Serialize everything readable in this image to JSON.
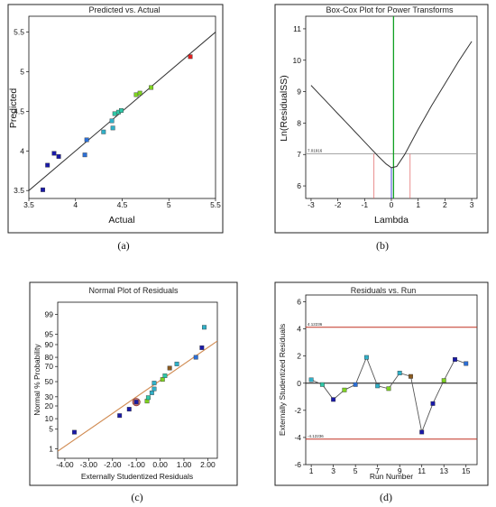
{
  "chart_data": [
    {
      "type": "scatter",
      "caption": "(a)",
      "title": "Predicted vs. Actual",
      "xlabel": "Actual",
      "ylabel": "Predicted",
      "xlim": [
        3.5,
        5.5
      ],
      "ylim": [
        3.4,
        5.7
      ],
      "xticks": [
        "3.5",
        "4",
        "4.5",
        "5",
        "5.5"
      ],
      "yticks": [
        "3.5",
        "4",
        "4.5",
        "5",
        "5.5"
      ],
      "x": [
        3.65,
        3.7,
        3.77,
        3.82,
        4.1,
        4.12,
        4.3,
        4.39,
        4.4,
        4.42,
        4.46,
        4.49,
        4.65,
        4.69,
        4.81,
        5.23
      ],
      "y": [
        3.51,
        3.82,
        3.97,
        3.93,
        3.95,
        4.14,
        4.24,
        4.38,
        4.29,
        4.47,
        4.49,
        4.51,
        4.71,
        4.73,
        4.8,
        5.19
      ],
      "point_colors": [
        "#1a1aa8",
        "#1a1aa8",
        "#1a1aa8",
        "#1a1aa8",
        "#2c6fd6",
        "#2c6fd6",
        "#30b0c8",
        "#30b0c8",
        "#30b0c8",
        "#30c8a8",
        "#30c8a8",
        "#30c8a8",
        "#7ed321",
        "#7ed321",
        "#7ed321",
        "#e02020"
      ],
      "reference_line": [
        [
          3.5,
          3.5
        ],
        [
          5.5,
          5.5
        ]
      ]
    },
    {
      "type": "line",
      "caption": "(b)",
      "title": "Box-Cox Plot for Power Transforms",
      "xlabel": "Lambda",
      "ylabel": "Ln(ResidualSS)",
      "xlim": [
        -3.2,
        3.2
      ],
      "ylim": [
        5.6,
        11.4
      ],
      "xticks": [
        "-3",
        "-2",
        "-1",
        "0",
        "1",
        "2",
        "3"
      ],
      "yticks": [
        "6",
        "7",
        "8",
        "9",
        "10",
        "11"
      ],
      "x": [
        -3,
        -2.5,
        -2,
        -1.5,
        -1,
        -0.5,
        -0.2,
        0,
        0.2,
        0.5,
        1,
        1.5,
        2,
        2.5,
        3
      ],
      "y": [
        9.2,
        8.75,
        8.3,
        7.85,
        7.4,
        6.95,
        6.7,
        6.58,
        6.62,
        7.0,
        7.8,
        8.55,
        9.25,
        9.95,
        10.6
      ],
      "ci_label": "7.01916",
      "ci_value": 7.02,
      "ci_lambda": [
        -0.65,
        0.7
      ],
      "best_lambda": 0.08,
      "current_lambda": 0.0
    },
    {
      "type": "scatter",
      "caption": "(c)",
      "title": "Normal Plot of Residuals",
      "xlabel": "Externally Studentized Residuals",
      "ylabel": "Normal % Probability",
      "xlim": [
        -4.3,
        2.4
      ],
      "xticks": [
        "-4.00",
        "-3.00",
        "-2.00",
        "-1.00",
        "0.00",
        "1.00",
        "2.00"
      ],
      "yticks": [
        "1",
        "5",
        "10",
        "20",
        "30",
        "50",
        "70",
        "80",
        "90",
        "95",
        "99"
      ],
      "x": [
        -3.6,
        -1.7,
        -1.3,
        -1.0,
        -0.55,
        -0.5,
        -0.35,
        -0.25,
        -0.25,
        0.1,
        0.2,
        0.4,
        0.7,
        1.5,
        1.75,
        1.85
      ],
      "y": [
        4,
        12,
        17,
        24,
        25,
        29,
        35,
        40,
        48,
        53,
        58,
        68,
        73,
        80,
        88,
        97
      ],
      "point_colors": [
        "#1a1aa8",
        "#1a1aa8",
        "#1a1aa8",
        "#1a1aa8",
        "#7ed321",
        "#30c8a8",
        "#30b0c8",
        "#30b0c8",
        "#30b0c8",
        "#7ed321",
        "#30c8a8",
        "#8a5a20",
        "#30b0c8",
        "#2c6fd6",
        "#1a1aa8",
        "#30b0c8"
      ],
      "reference_line": [
        [
          -4.3,
          0.8
        ],
        [
          2.4,
          92
        ]
      ],
      "highlight_index": 3
    },
    {
      "type": "line",
      "caption": "(d)",
      "title": "Residuals vs. Run",
      "xlabel": "Run Number",
      "ylabel": "Externally Studentized Residuals",
      "xlim": [
        0.5,
        16
      ],
      "ylim": [
        -6,
        6.5
      ],
      "xticks": [
        "1",
        "3",
        "5",
        "7",
        "9",
        "11",
        "13",
        "15"
      ],
      "yticks": [
        "-6",
        "-4",
        "-2",
        "0",
        "2",
        "4",
        "6"
      ],
      "upper_limit": 4.12236,
      "lower_limit": -4.12236,
      "upper_label": "4.12236",
      "lower_label": "-4.12236",
      "x": [
        1,
        2,
        3,
        4,
        5,
        6,
        7,
        8,
        9,
        10,
        11,
        12,
        13,
        14,
        15
      ],
      "y": [
        0.25,
        -0.1,
        -1.2,
        -0.5,
        -0.1,
        1.9,
        -0.2,
        -0.4,
        0.75,
        0.5,
        -3.6,
        -1.5,
        0.2,
        1.75,
        1.45
      ],
      "point_colors": [
        "#30b0c8",
        "#30c8a8",
        "#1a1aa8",
        "#7ed321",
        "#2c6fd6",
        "#30b0c8",
        "#30b0c8",
        "#7ed321",
        "#30b0c8",
        "#8a5a20",
        "#1a1aa8",
        "#1a1aa8",
        "#7ed321",
        "#1a1aa8",
        "#2c6fd6"
      ]
    }
  ]
}
